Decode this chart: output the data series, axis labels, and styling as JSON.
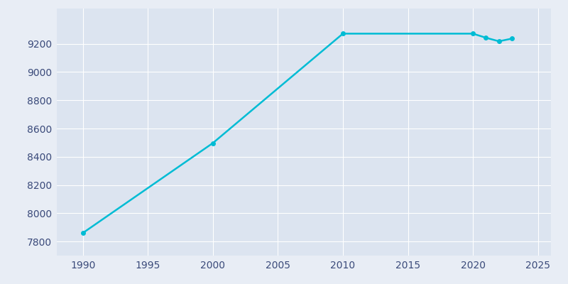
{
  "years": [
    1990,
    2000,
    2010,
    2020,
    2021,
    2022,
    2023
  ],
  "population": [
    7860,
    8497,
    9272,
    9272,
    9243,
    9218,
    9237
  ],
  "line_color": "#00BCD4",
  "marker_color": "#00BCD4",
  "bg_color": "#e8edf5",
  "plot_bg_color": "#dce4f0",
  "grid_color": "#ffffff",
  "tick_color": "#3a4a7a",
  "xlim": [
    1988,
    2026
  ],
  "ylim": [
    7700,
    9450
  ],
  "xticks": [
    1990,
    1995,
    2000,
    2005,
    2010,
    2015,
    2020,
    2025
  ],
  "yticks": [
    7800,
    8000,
    8200,
    8400,
    8600,
    8800,
    9000,
    9200
  ],
  "line_width": 1.8,
  "marker_size": 4
}
